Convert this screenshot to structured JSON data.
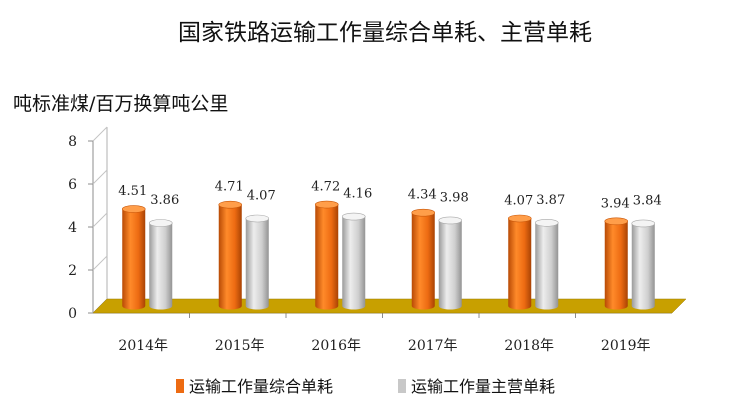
{
  "chart_data": {
    "type": "bar",
    "title": "国家铁路运输工作量综合单耗、主营单耗",
    "ylabel": "吨标准煤/百万换算吨公里",
    "xlabel": "",
    "ylim": [
      0,
      8
    ],
    "yticks": [
      0,
      2,
      4,
      6,
      8
    ],
    "categories": [
      "2014年",
      "2015年",
      "2016年",
      "2017年",
      "2018年",
      "2019年"
    ],
    "series": [
      {
        "name": "运输工作量综合单耗",
        "color": "#ED6B12",
        "values": [
          4.51,
          4.71,
          4.72,
          4.34,
          4.07,
          3.94
        ],
        "labels": [
          "4.51",
          "4.71",
          "4.72",
          "4.34",
          "4.07",
          "3.94"
        ]
      },
      {
        "name": "运输工作量主营单耗",
        "color": "#C8C8C8",
        "values": [
          3.86,
          4.07,
          4.16,
          3.98,
          3.87,
          3.84
        ],
        "labels": [
          "3.86",
          "4.07",
          "4.16",
          "3.98",
          "3.87",
          "3.84"
        ]
      }
    ],
    "floor_color": "#C8A000",
    "grid": false,
    "legend": "bottom"
  }
}
